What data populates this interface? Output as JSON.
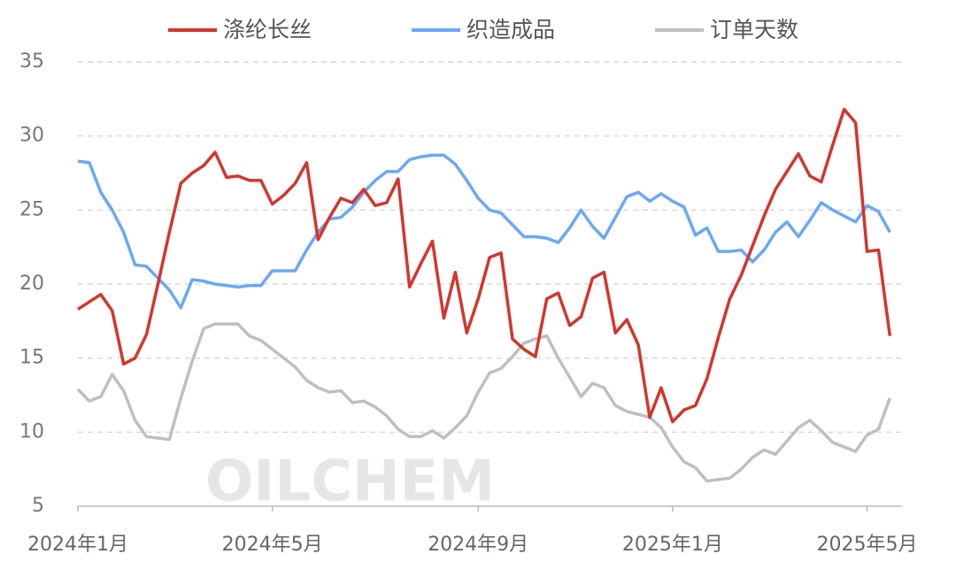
{
  "chart_data": {
    "type": "line",
    "watermark": "OILCHEM",
    "categories": [
      "2024年1月",
      null,
      null,
      null,
      null,
      null,
      null,
      null,
      null,
      null,
      null,
      null,
      null,
      null,
      null,
      null,
      null,
      "2024年5月",
      null,
      null,
      null,
      null,
      null,
      null,
      null,
      null,
      null,
      null,
      null,
      null,
      null,
      null,
      null,
      null,
      null,
      "2024年9月",
      null,
      null,
      null,
      null,
      null,
      null,
      null,
      null,
      null,
      null,
      null,
      null,
      null,
      null,
      null,
      null,
      "2025年1月",
      null,
      null,
      null,
      null,
      null,
      null,
      null,
      null,
      null,
      null,
      null,
      null,
      null,
      null,
      null,
      null,
      "2025年5月",
      null,
      null
    ],
    "series": [
      {
        "name": "涤纶长丝",
        "color": "#d2362e",
        "values": [
          18.3,
          18.8,
          19.3,
          18.2,
          14.6,
          15.0,
          16.6,
          20.0,
          23.5,
          26.8,
          27.5,
          28.0,
          28.9,
          27.2,
          27.3,
          27.0,
          27.0,
          25.4,
          26.0,
          26.8,
          28.2,
          23.0,
          24.5,
          25.8,
          25.5,
          26.4,
          25.3,
          25.5,
          27.1,
          19.8,
          21.4,
          22.9,
          17.7,
          20.8,
          16.7,
          19.0,
          21.8,
          22.1,
          16.3,
          15.6,
          15.1,
          19.0,
          19.4,
          17.2,
          17.8,
          20.4,
          20.8,
          16.7,
          17.6,
          15.9,
          11.0,
          13.0,
          10.7,
          11.5,
          11.8,
          13.6,
          16.4,
          19.0,
          20.6,
          22.6,
          24.6,
          26.4,
          27.6,
          28.8,
          27.3,
          26.9,
          29.4,
          31.8,
          30.9,
          22.2,
          22.3,
          16.5
        ]
      },
      {
        "name": "织造成品",
        "color": "#6aa8f7",
        "values": [
          28.3,
          28.2,
          26.2,
          25.0,
          23.5,
          21.3,
          21.2,
          20.4,
          19.6,
          18.4,
          20.3,
          20.2,
          20.0,
          19.9,
          19.8,
          19.9,
          19.9,
          20.9,
          20.9,
          20.9,
          22.3,
          23.5,
          24.4,
          24.5,
          25.2,
          26.2,
          27.0,
          27.6,
          27.6,
          28.4,
          28.6,
          28.7,
          28.7,
          28.1,
          27.0,
          25.8,
          25.0,
          24.8,
          24.0,
          23.2,
          23.2,
          23.1,
          22.8,
          23.8,
          25.0,
          23.9,
          23.1,
          24.5,
          25.9,
          26.2,
          25.6,
          26.1,
          25.6,
          25.2,
          23.3,
          23.8,
          22.2,
          22.2,
          22.3,
          21.5,
          22.3,
          23.5,
          24.2,
          23.2,
          24.3,
          25.5,
          25.0,
          24.6,
          24.2,
          25.3,
          24.9,
          23.5
        ]
      },
      {
        "name": "订单天数",
        "color": "#bfbfbf",
        "values": [
          12.9,
          12.1,
          12.4,
          13.9,
          12.8,
          10.8,
          9.7,
          9.6,
          9.5,
          12.3,
          14.8,
          17.0,
          17.3,
          17.3,
          17.3,
          16.5,
          16.2,
          15.6,
          15.0,
          14.4,
          13.5,
          13.0,
          12.7,
          12.8,
          12.0,
          12.1,
          11.7,
          11.1,
          10.2,
          9.7,
          9.7,
          10.1,
          9.6,
          10.3,
          11.1,
          12.7,
          14.0,
          14.3,
          15.1,
          16.0,
          16.3,
          16.5,
          15.0,
          13.7,
          12.4,
          13.3,
          13.0,
          11.8,
          11.4,
          11.2,
          11.0,
          10.3,
          9.0,
          8.0,
          7.6,
          6.7,
          6.8,
          6.9,
          7.5,
          8.3,
          8.8,
          8.5,
          9.4,
          10.3,
          10.8,
          10.1,
          9.3,
          9.0,
          8.7,
          9.8,
          10.2,
          12.3
        ]
      }
    ],
    "ylim": [
      5,
      35
    ],
    "yticks": [
      5,
      10,
      15,
      20,
      25,
      30,
      35
    ],
    "grid": true,
    "legend": "top"
  }
}
